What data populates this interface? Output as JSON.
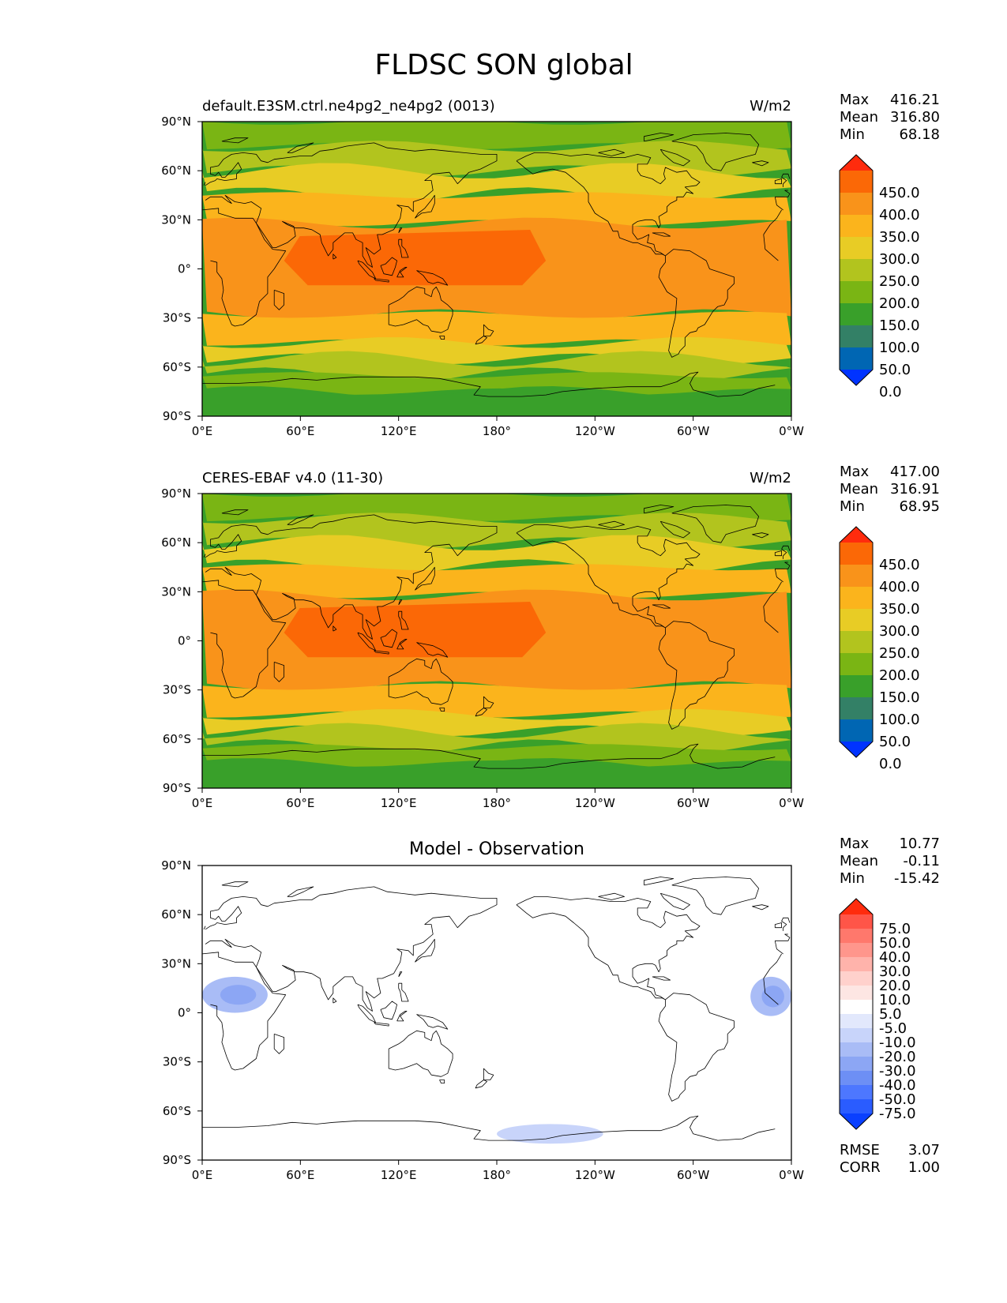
{
  "figure": {
    "title": "FLDSC SON global"
  },
  "x_ticks": [
    "0°E",
    "60°E",
    "120°E",
    "180°",
    "120°W",
    "60°W",
    "0°W"
  ],
  "y_ticks": [
    "90°N",
    "60°N",
    "30°N",
    "0°",
    "30°S",
    "60°S",
    "90°S"
  ],
  "colors": {
    "field": [
      "#0033ff",
      "#0066b3",
      "#338066",
      "#39a02a",
      "#7ab514",
      "#b2c41e",
      "#e8cc25",
      "#fbb41c",
      "#f9931a",
      "#fb6806",
      "#ff2b0d"
    ],
    "diff": [
      "#0a40ff",
      "#2a5cff",
      "#4d77ff",
      "#6d8ff5",
      "#8ca6f4",
      "#a9bcf6",
      "#c8d4fa",
      "#e2e8fc",
      "#ffffff",
      "#fde6e3",
      "#ffd1cc",
      "#ffb3ab",
      "#ff968c",
      "#ff786c",
      "#ff5548",
      "#ff2b0d"
    ]
  },
  "panels": [
    {
      "id": "model",
      "left_title": "default.E3SM.ctrl.ne4pg2_ne4pg2 (0013)",
      "center_title": "",
      "units": "W/m2",
      "stats": [
        {
          "label": "Max",
          "value": "416.21"
        },
        {
          "label": "Mean",
          "value": "316.80"
        },
        {
          "label": "Min",
          "value": "68.18"
        }
      ],
      "colorbar": {
        "labels": [
          "450.0",
          "400.0",
          "350.0",
          "300.0",
          "250.0",
          "200.0",
          "150.0",
          "100.0",
          "50.0",
          "0.0"
        ]
      },
      "extra_stats": []
    },
    {
      "id": "obs",
      "left_title": "CERES-EBAF v4.0 (11-30)",
      "center_title": "",
      "units": "W/m2",
      "stats": [
        {
          "label": "Max",
          "value": "417.00"
        },
        {
          "label": "Mean",
          "value": "316.91"
        },
        {
          "label": "Min",
          "value": "68.95"
        }
      ],
      "colorbar": {
        "labels": [
          "450.0",
          "400.0",
          "350.0",
          "300.0",
          "250.0",
          "200.0",
          "150.0",
          "100.0",
          "50.0",
          "0.0"
        ]
      },
      "extra_stats": []
    },
    {
      "id": "diff",
      "left_title": "",
      "center_title": "Model - Observation",
      "units": "",
      "stats": [
        {
          "label": "Max",
          "value": "10.77"
        },
        {
          "label": "Mean",
          "value": "-0.11"
        },
        {
          "label": "Min",
          "value": "-15.42"
        }
      ],
      "colorbar": {
        "labels": [
          "75.0",
          "50.0",
          "40.0",
          "30.0",
          "20.0",
          "10.0",
          "5.0",
          "-5.0",
          "-10.0",
          "-20.0",
          "-30.0",
          "-40.0",
          "-50.0",
          "-75.0"
        ]
      },
      "extra_stats": [
        {
          "label": "RMSE",
          "value": "3.07"
        },
        {
          "label": "CORR",
          "value": "1.00"
        }
      ]
    }
  ],
  "chart_data": [
    {
      "type": "heatmap",
      "map": "global lat-lon contour",
      "variable": "FLDSC",
      "units": "W/m2",
      "xlim": [
        0,
        360
      ],
      "ylim": [
        -90,
        90
      ],
      "levels": [
        0,
        50,
        100,
        150,
        200,
        250,
        300,
        350,
        400,
        450
      ],
      "zonal_bands": [
        {
          "lat": [
            75,
            90
          ],
          "value": 150
        },
        {
          "lat": [
            60,
            75
          ],
          "value": 200
        },
        {
          "lat": [
            45,
            60
          ],
          "value": 250
        },
        {
          "lat": [
            28,
            45
          ],
          "value": 300
        },
        {
          "lat": [
            -28,
            28
          ],
          "value": 350
        },
        {
          "lat": [
            -10,
            20
          ],
          "lon": [
            50,
            210
          ],
          "value": 400
        },
        {
          "lat": [
            -45,
            -28
          ],
          "value": 300
        },
        {
          "lat": [
            -55,
            -45
          ],
          "value": 250
        },
        {
          "lat": [
            -65,
            -55
          ],
          "value": 200
        },
        {
          "lat": [
            -75,
            -65
          ],
          "value": 150
        },
        {
          "lat": [
            -90,
            -75
          ],
          "value": 100
        }
      ]
    },
    {
      "type": "heatmap",
      "map": "global lat-lon contour",
      "variable": "FLDSC",
      "units": "W/m2",
      "xlim": [
        0,
        360
      ],
      "ylim": [
        -90,
        90
      ],
      "levels": [
        0,
        50,
        100,
        150,
        200,
        250,
        300,
        350,
        400,
        450
      ],
      "zonal_bands": [
        {
          "lat": [
            75,
            90
          ],
          "value": 150
        },
        {
          "lat": [
            60,
            75
          ],
          "value": 200
        },
        {
          "lat": [
            45,
            60
          ],
          "value": 250
        },
        {
          "lat": [
            28,
            45
          ],
          "value": 300
        },
        {
          "lat": [
            -28,
            28
          ],
          "value": 350
        },
        {
          "lat": [
            -10,
            20
          ],
          "lon": [
            50,
            210
          ],
          "value": 400
        },
        {
          "lat": [
            -45,
            -28
          ],
          "value": 300
        },
        {
          "lat": [
            -55,
            -45
          ],
          "value": 250
        },
        {
          "lat": [
            -65,
            -55
          ],
          "value": 200
        },
        {
          "lat": [
            -75,
            -65
          ],
          "value": 150
        },
        {
          "lat": [
            -90,
            -75
          ],
          "value": 100
        }
      ]
    },
    {
      "type": "heatmap",
      "map": "global lat-lon contour (difference)",
      "units": "W/m2",
      "xlim": [
        0,
        360
      ],
      "ylim": [
        -90,
        90
      ],
      "levels": [
        -75,
        -50,
        -40,
        -30,
        -20,
        -10,
        -5,
        5,
        10,
        20,
        30,
        40,
        50,
        75
      ],
      "anomalies": [
        {
          "region": "Arctic / Greenland",
          "lat": [
            72,
            88
          ],
          "lon": [
            230,
            340
          ],
          "value": 7
        },
        {
          "region": "Siberia",
          "lat": [
            80,
            86
          ],
          "lon": [
            95,
            115
          ],
          "value": 7
        },
        {
          "region": "Tibet / East Asia",
          "lat": [
            20,
            40
          ],
          "lon": [
            75,
            160
          ],
          "value": 7
        },
        {
          "region": "West Africa / Sahara",
          "lat": [
            0,
            22
          ],
          "lon": [
            0,
            40
          ],
          "value": -12
        },
        {
          "region": "East Atlantic",
          "lat": [
            -2,
            22
          ],
          "lon": [
            335,
            360
          ],
          "value": -12
        },
        {
          "region": "Southern Ocean",
          "lat": [
            -80,
            -68
          ],
          "lon": [
            180,
            245
          ],
          "value": -7
        }
      ]
    }
  ]
}
